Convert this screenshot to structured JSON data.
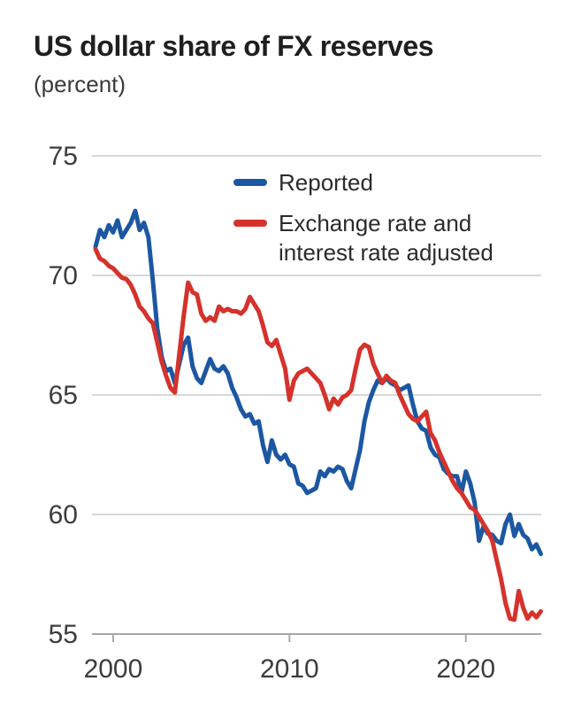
{
  "header": {
    "title": "US dollar share of FX reserves",
    "subtitle": "(percent)"
  },
  "chart_data": {
    "type": "line",
    "title": "US dollar share of FX reserves",
    "subtitle": "(percent)",
    "ylabel": "percent",
    "xlabel": "",
    "grid": "horizontal",
    "legend_position": "top-center-inside",
    "xlim": [
      1999.0,
      2024.25
    ],
    "ylim": [
      55,
      75
    ],
    "yticks": [
      55,
      60,
      65,
      70,
      75
    ],
    "xticks": [
      2000,
      2010,
      2020
    ],
    "colors": {
      "background": "#ffffff",
      "gridline": "#cccccc",
      "axis": "#a8a8a8",
      "tick_text": "#3c3c3c"
    },
    "x": [
      1999.0,
      1999.25,
      1999.5,
      1999.75,
      2000.0,
      2000.25,
      2000.5,
      2000.75,
      2001.0,
      2001.25,
      2001.5,
      2001.75,
      2002.0,
      2002.25,
      2002.5,
      2002.75,
      2003.0,
      2003.25,
      2003.5,
      2003.75,
      2004.0,
      2004.25,
      2004.5,
      2004.75,
      2005.0,
      2005.25,
      2005.5,
      2005.75,
      2006.0,
      2006.25,
      2006.5,
      2006.75,
      2007.0,
      2007.25,
      2007.5,
      2007.75,
      2008.0,
      2008.25,
      2008.5,
      2008.75,
      2009.0,
      2009.25,
      2009.5,
      2009.75,
      2010.0,
      2010.25,
      2010.5,
      2010.75,
      2011.0,
      2011.25,
      2011.5,
      2011.75,
      2012.0,
      2012.25,
      2012.5,
      2012.75,
      2013.0,
      2013.25,
      2013.5,
      2013.75,
      2014.0,
      2014.25,
      2014.5,
      2014.75,
      2015.0,
      2015.25,
      2015.5,
      2015.75,
      2016.0,
      2016.25,
      2016.5,
      2016.75,
      2017.0,
      2017.25,
      2017.5,
      2017.75,
      2018.0,
      2018.25,
      2018.5,
      2018.75,
      2019.0,
      2019.25,
      2019.5,
      2019.75,
      2020.0,
      2020.25,
      2020.5,
      2020.75,
      2021.0,
      2021.25,
      2021.5,
      2021.75,
      2022.0,
      2022.25,
      2022.5,
      2022.75,
      2023.0,
      2023.25,
      2023.5,
      2023.75,
      2024.0,
      2024.25
    ],
    "series": [
      {
        "name": "Reported",
        "color": "#1c57a2",
        "values": [
          71.2,
          71.9,
          71.6,
          72.1,
          71.8,
          72.3,
          71.6,
          71.9,
          72.2,
          72.7,
          71.9,
          72.2,
          71.6,
          69.8,
          67.8,
          66.6,
          66.0,
          66.1,
          65.5,
          66.3,
          67.1,
          67.4,
          66.2,
          65.7,
          65.5,
          66.0,
          66.5,
          66.1,
          66.0,
          66.2,
          65.9,
          65.3,
          64.9,
          64.4,
          64.1,
          64.2,
          63.8,
          63.9,
          62.9,
          62.2,
          63.1,
          62.5,
          62.3,
          62.5,
          62.1,
          62.0,
          61.3,
          61.2,
          60.9,
          61.0,
          61.1,
          61.8,
          61.6,
          61.9,
          61.8,
          62.0,
          61.9,
          61.4,
          61.1,
          61.9,
          62.7,
          63.9,
          64.7,
          65.2,
          65.6,
          65.5,
          65.7,
          65.5,
          65.4,
          65.2,
          65.3,
          65.4,
          64.6,
          63.9,
          63.6,
          63.5,
          62.8,
          62.5,
          62.4,
          61.9,
          61.7,
          61.6,
          61.6,
          60.9,
          61.8,
          61.3,
          60.5,
          58.9,
          59.5,
          59.2,
          59.15,
          58.9,
          58.8,
          59.6,
          60.0,
          59.1,
          59.6,
          59.15,
          59.0,
          58.55,
          58.75,
          58.35
        ]
      },
      {
        "name": "Exchange rate and interest rate adjusted",
        "color": "#d5322c",
        "values": [
          71.1,
          70.7,
          70.6,
          70.4,
          70.3,
          70.1,
          69.9,
          69.85,
          69.6,
          69.2,
          68.7,
          68.5,
          68.2,
          68.0,
          67.2,
          66.4,
          65.8,
          65.3,
          65.1,
          66.7,
          68.3,
          69.7,
          69.3,
          69.2,
          68.4,
          68.1,
          68.25,
          68.1,
          68.7,
          68.5,
          68.6,
          68.5,
          68.5,
          68.4,
          68.6,
          69.1,
          68.8,
          68.5,
          67.9,
          67.2,
          67.05,
          67.3,
          66.7,
          66.1,
          64.8,
          65.6,
          65.9,
          66.0,
          66.1,
          65.9,
          65.7,
          65.5,
          65.0,
          64.4,
          64.85,
          64.6,
          64.9,
          65.0,
          65.2,
          66.1,
          66.9,
          67.1,
          67.0,
          66.3,
          65.9,
          65.5,
          65.8,
          65.6,
          65.5,
          65.0,
          64.6,
          64.2,
          64.0,
          63.9,
          64.1,
          64.3,
          63.4,
          63.1,
          62.6,
          62.2,
          61.8,
          61.4,
          61.1,
          60.9,
          60.6,
          60.3,
          60.2,
          59.9,
          59.6,
          59.3,
          58.9,
          58.1,
          57.3,
          56.3,
          55.65,
          55.6,
          56.8,
          56.1,
          55.65,
          55.9,
          55.7,
          55.95
        ]
      }
    ]
  },
  "legend": {
    "items": [
      {
        "label": "Reported",
        "series_index": 0
      },
      {
        "label": "Exchange rate and interest rate adjusted",
        "series_index": 1
      }
    ]
  }
}
